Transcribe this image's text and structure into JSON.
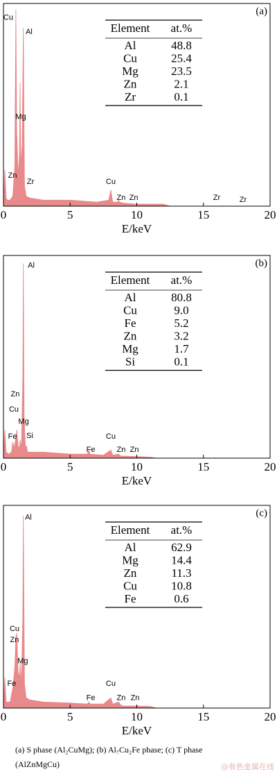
{
  "chart_data": [
    {
      "type": "area",
      "panel": "(a)",
      "xlabel": "E/keV",
      "xlim": [
        0,
        20
      ],
      "xticks": [
        0,
        5,
        10,
        15,
        20
      ],
      "ylim": [
        0,
        100
      ],
      "color": "#e8898b",
      "x": [
        0,
        0.1,
        0.2,
        0.3,
        0.5,
        0.7,
        0.85,
        0.93,
        1.0,
        1.01,
        1.1,
        1.2,
        1.25,
        1.3,
        1.4,
        1.49,
        1.58,
        1.7,
        2,
        3,
        5,
        7,
        7.9,
        8.05,
        8.2,
        8.6,
        8.64,
        8.7,
        9,
        10,
        12,
        12.5,
        20
      ],
      "series": [
        {
          "values": [
            0,
            18,
            4,
            3,
            3,
            5,
            20,
            97,
            30,
            35,
            15,
            25,
            61,
            20,
            30,
            88,
            10,
            5,
            4,
            3,
            3,
            2,
            3,
            8,
            2,
            2,
            3,
            2,
            1.5,
            1,
            1,
            0,
            0
          ]
        }
      ],
      "annotations": [
        {
          "text": "Cu",
          "x": 0.36,
          "y": 93
        },
        {
          "text": "Al",
          "x": 1.92,
          "y": 86
        },
        {
          "text": "Mg",
          "x": 1.3,
          "y": 44
        },
        {
          "text": "Zn",
          "x": 0.68,
          "y": 15
        },
        {
          "text": "Zr",
          "x": 2.03,
          "y": 12
        },
        {
          "text": "Cu",
          "x": 8.05,
          "y": 12
        },
        {
          "text": "Zn",
          "x": 8.83,
          "y": 4
        },
        {
          "text": "Zn",
          "x": 9.77,
          "y": 4
        },
        {
          "text": "Zr",
          "x": 16,
          "y": 4
        },
        {
          "text": "Zr",
          "x": 17.97,
          "y": 3
        }
      ],
      "table": {
        "header": [
          "Element",
          "at.%"
        ],
        "rows": [
          [
            "Al",
            "48.8"
          ],
          [
            "Cu",
            "25.4"
          ],
          [
            "Mg",
            "23.5"
          ],
          [
            "Zn",
            "2.1"
          ],
          [
            "Zr",
            "0.1"
          ]
        ]
      }
    },
    {
      "type": "area",
      "panel": "(b)",
      "xlabel": "E/keV",
      "xlim": [
        0,
        20
      ],
      "xticks": [
        0,
        5,
        10,
        15,
        20
      ],
      "ylim": [
        0,
        100
      ],
      "color": "#e8898b",
      "x": [
        0,
        0.1,
        0.2,
        0.4,
        0.6,
        0.7,
        0.8,
        0.93,
        1.0,
        1.1,
        1.2,
        1.25,
        1.35,
        1.45,
        1.49,
        1.55,
        1.65,
        1.74,
        1.8,
        2,
        3,
        5,
        6.3,
        6.4,
        6.5,
        7.5,
        8.05,
        8.2,
        8.64,
        8.8,
        9,
        10,
        11,
        11.5,
        20
      ],
      "series": [
        {
          "values": [
            0,
            14,
            3,
            2,
            3,
            8,
            5,
            10,
            14,
            6,
            5,
            9,
            5,
            40,
            96,
            20,
            5,
            6,
            3,
            3,
            3,
            2,
            2,
            4,
            2,
            1.5,
            4,
            1.5,
            2,
            1,
            1,
            0.8,
            0.5,
            0,
            0
          ]
        }
      ],
      "annotations": [
        {
          "text": "Al",
          "x": 2.08,
          "y": 95
        },
        {
          "text": "Zn",
          "x": 0.88,
          "y": 31.5
        },
        {
          "text": "Cu",
          "x": 0.78,
          "y": 24
        },
        {
          "text": "Mg",
          "x": 1.51,
          "y": 18
        },
        {
          "text": "Fe",
          "x": 0.68,
          "y": 10.6
        },
        {
          "text": "Si",
          "x": 1.97,
          "y": 11
        },
        {
          "text": "Fe",
          "x": 6.55,
          "y": 4
        },
        {
          "text": "Cu",
          "x": 8.05,
          "y": 10.6
        },
        {
          "text": "Zn",
          "x": 8.83,
          "y": 4
        },
        {
          "text": "Zn",
          "x": 9.82,
          "y": 4
        }
      ],
      "table": {
        "header": [
          "Element",
          "at.%"
        ],
        "rows": [
          [
            "Al",
            "80.8"
          ],
          [
            "Cu",
            "9.0"
          ],
          [
            "Fe",
            "5.2"
          ],
          [
            "Zn",
            "3.2"
          ],
          [
            "Mg",
            "1.7"
          ],
          [
            "Si",
            "0.1"
          ]
        ]
      }
    },
    {
      "type": "area",
      "panel": "(c)",
      "xlabel": "E/keV",
      "xlim": [
        0,
        20
      ],
      "xticks": [
        0,
        5,
        10,
        15,
        20
      ],
      "ylim": [
        0,
        100
      ],
      "color": "#e8898b",
      "x": [
        0,
        0.1,
        0.2,
        0.5,
        0.7,
        0.85,
        0.93,
        1.0,
        1.1,
        1.2,
        1.25,
        1.35,
        1.45,
        1.49,
        1.58,
        1.7,
        2,
        3,
        5,
        6.3,
        6.4,
        6.5,
        7.5,
        8.05,
        8.2,
        8.64,
        8.8,
        9,
        10,
        11,
        11.5,
        20
      ],
      "series": [
        {
          "values": [
            0,
            15,
            3,
            3,
            10,
            20,
            35,
            37,
            18,
            15,
            22,
            12,
            45,
            95,
            12,
            5,
            4,
            3,
            2.5,
            2,
            3,
            2,
            2,
            5,
            2,
            3,
            1.5,
            1,
            1,
            0.8,
            0,
            0
          ]
        }
      ],
      "annotations": [
        {
          "text": "Al",
          "x": 1.87,
          "y": 94
        },
        {
          "text": "Cu",
          "x": 0.83,
          "y": 39
        },
        {
          "text": "Zn",
          "x": 0.83,
          "y": 33.6
        },
        {
          "text": "Mg",
          "x": 1.45,
          "y": 23
        },
        {
          "text": "Fe",
          "x": 0.62,
          "y": 12
        },
        {
          "text": "Fe",
          "x": 6.55,
          "y": 5
        },
        {
          "text": "Cu",
          "x": 8.05,
          "y": 12
        },
        {
          "text": "Zn",
          "x": 8.83,
          "y": 5
        },
        {
          "text": "Zn",
          "x": 9.87,
          "y": 5
        }
      ],
      "table": {
        "header": [
          "Element",
          "at.%"
        ],
        "rows": [
          [
            "Al",
            "62.9"
          ],
          [
            "Mg",
            "14.4"
          ],
          [
            "Zn",
            "11.3"
          ],
          [
            "Cu",
            "10.8"
          ],
          [
            "Fe",
            "0.6"
          ]
        ]
      }
    }
  ],
  "caption": [
    "(a) S phase (Al₂CuMg); (b) Al₇Cu₂Fe phase; (c) T phase",
    "(AlZnMgCu)"
  ],
  "watermark": "@有色金属在线"
}
